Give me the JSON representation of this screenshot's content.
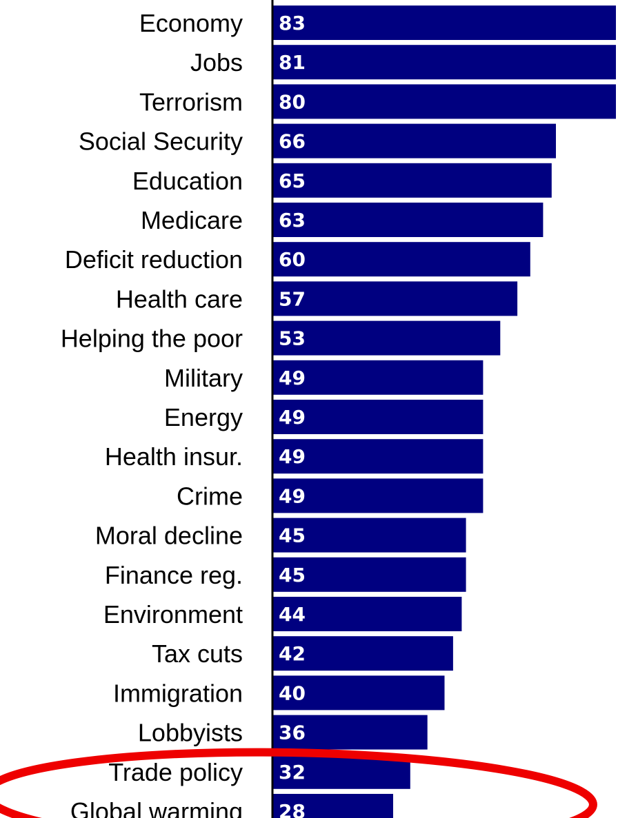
{
  "chart_data": {
    "type": "bar",
    "orientation": "horizontal",
    "categories": [
      "Economy",
      "Jobs",
      "Terrorism",
      "Social Security",
      "Education",
      "Medicare",
      "Deficit reduction",
      "Health care",
      "Helping the poor",
      "Military",
      "Energy",
      "Health insur.",
      "Crime",
      "Moral decline",
      "Finance reg.",
      "Environment",
      "Tax cuts",
      "Immigration",
      "Lobbyists",
      "Trade policy",
      "Global warming"
    ],
    "values": [
      83,
      81,
      80,
      66,
      65,
      63,
      60,
      57,
      53,
      49,
      49,
      49,
      49,
      45,
      45,
      44,
      42,
      40,
      36,
      32,
      28
    ],
    "title": "",
    "xlabel": "",
    "ylabel": "",
    "xlim": [
      0,
      80
    ],
    "grid": false,
    "legend": "none",
    "colors": {
      "bar": "#000080",
      "value_text": "#ffffff",
      "category_text": "#000000",
      "axis": "#000000",
      "highlight_ellipse": "#ee0000"
    },
    "annotations": [
      {
        "type": "ellipse",
        "target_categories": [
          "Trade policy",
          "Global warming"
        ]
      }
    ]
  }
}
